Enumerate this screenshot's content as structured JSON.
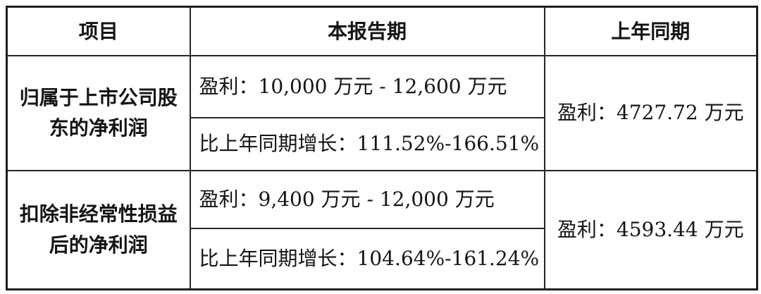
{
  "table": {
    "headers": {
      "item": "项目",
      "current_period": "本报告期",
      "prior_period": "上年同期"
    },
    "rows": [
      {
        "item": "归属于上市公司股\n东的净利润",
        "profit_range": "盈利：10,000 万元 - 12,600 万元",
        "growth": "比上年同期增长：111.52%-166.51%",
        "prior_profit": "盈利：4727.72 万元"
      },
      {
        "item": "扣除非经常性损益\n后的净利润",
        "profit_range": "盈利：9,400 万元 - 12,000 万元",
        "growth": "比上年同期增长：104.64%-161.24%",
        "prior_profit": "盈利：4593.44 万元"
      }
    ]
  }
}
